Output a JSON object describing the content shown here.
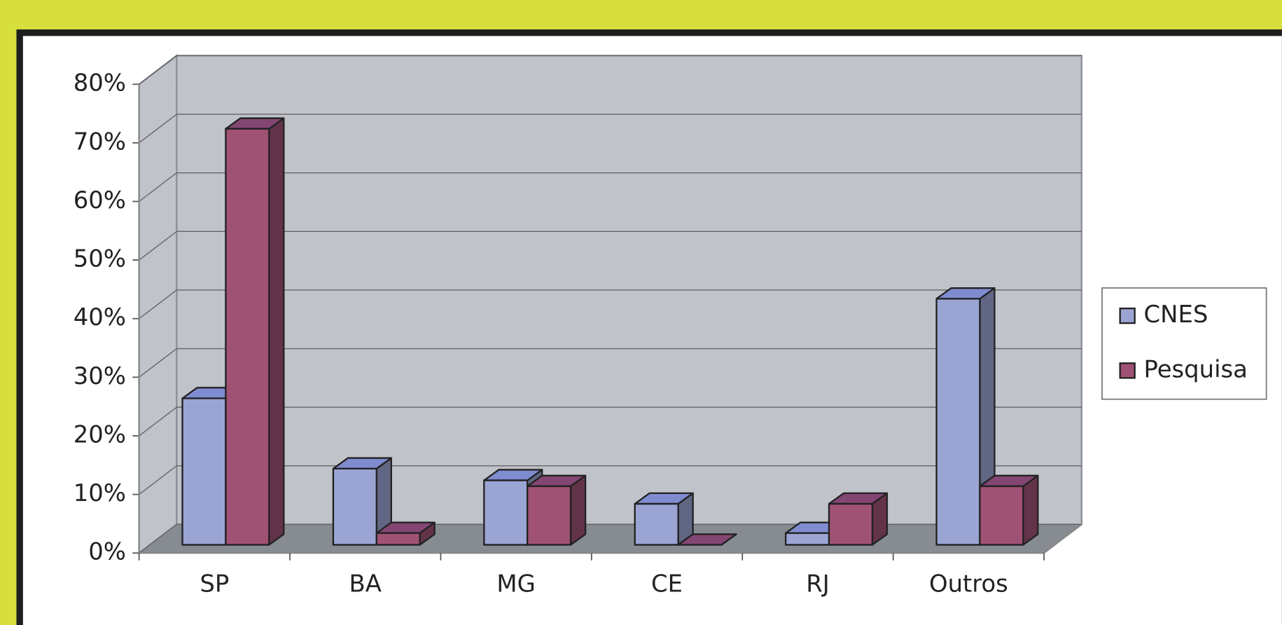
{
  "chart_data": {
    "type": "bar3d",
    "categories": [
      "SP",
      "BA",
      "MG",
      "CE",
      "RJ",
      "Outros"
    ],
    "series": [
      {
        "name": "CNES",
        "color": "#9ba5d4",
        "values": [
          25,
          13,
          11,
          7,
          2,
          42
        ]
      },
      {
        "name": "Pesquisa",
        "color": "#a05275",
        "values": [
          71,
          2,
          10,
          0,
          7,
          10
        ]
      }
    ],
    "ylim": [
      0,
      80
    ],
    "yticks": [
      {
        "value": 0,
        "label": "0%"
      },
      {
        "value": 10,
        "label": "10%"
      },
      {
        "value": 20,
        "label": "20%"
      },
      {
        "value": 30,
        "label": "30%"
      },
      {
        "value": 40,
        "label": "40%"
      },
      {
        "value": 50,
        "label": "50%"
      },
      {
        "value": 60,
        "label": "60%"
      },
      {
        "value": 70,
        "label": "70%"
      },
      {
        "value": 80,
        "label": "80%"
      }
    ],
    "grid": true,
    "legend": "right"
  }
}
